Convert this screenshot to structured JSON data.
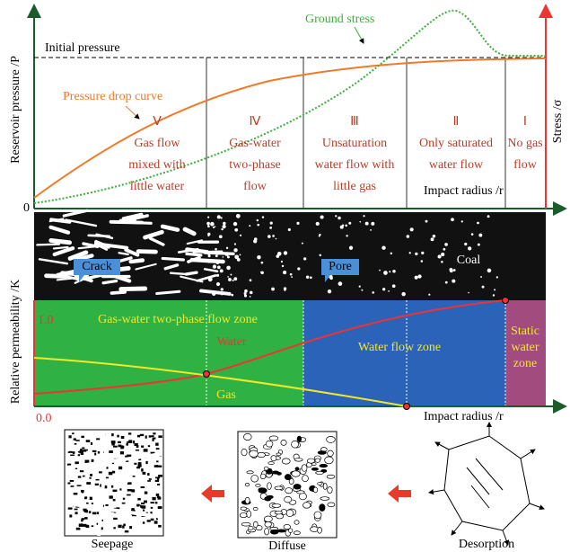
{
  "top_panel": {
    "y_axis_label": "Reservoir pressure /P",
    "right_axis_label": "Stress /σ",
    "origin_label": "0",
    "x_axis_label": "Impact radius /r",
    "initial_pressure": "Initial pressure",
    "ground_stress": "Ground stress",
    "pressure_drop_curve": "Pressure drop curve",
    "zones": [
      {
        "numeral": "Ⅴ",
        "lines": [
          "Gas flow",
          "mixed with",
          "little water"
        ]
      },
      {
        "numeral": "Ⅳ",
        "lines": [
          "Gas-water",
          "two-phase",
          "flow"
        ]
      },
      {
        "numeral": "Ⅲ",
        "lines": [
          "Unsaturation",
          "water flow with",
          "little gas"
        ]
      },
      {
        "numeral": "Ⅱ",
        "lines": [
          "Only saturated",
          "water flow"
        ]
      },
      {
        "numeral": "Ⅰ",
        "lines": [
          "No gas",
          "flow"
        ]
      }
    ]
  },
  "middle_panel": {
    "crack": "Crack",
    "pore": "Pore",
    "coal": "Coal"
  },
  "bottom_panel": {
    "y_axis_label": "Relative permeability /K",
    "top_label": "1.0",
    "bottom_label": "0.0",
    "x_axis_label": "Impact radius /r",
    "two_phase_zone": "Gas-water two-phase flow zone",
    "water_zone": "Water flow zone",
    "static_zone": [
      "Static",
      "water",
      "zone"
    ],
    "water": "Water",
    "gas": "Gas"
  },
  "processes": [
    "Seepage",
    "Diffuse",
    "Desorption"
  ]
}
